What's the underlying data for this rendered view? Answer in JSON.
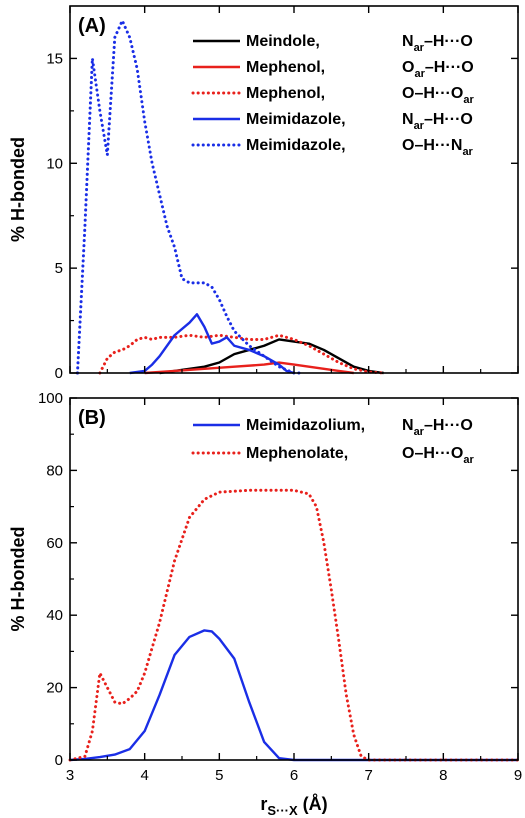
{
  "colors": {
    "black": "#000000",
    "red": "#e8211c",
    "blue": "#1a2ee6"
  },
  "chart_data": [
    {
      "type": "line",
      "panel_label": "(A)",
      "xlabel": "",
      "ylabel": "% H-bonded",
      "xlim": [
        3,
        9
      ],
      "ylim": [
        0,
        17.5
      ],
      "xticks": [
        3,
        4,
        5,
        6,
        7,
        8,
        9
      ],
      "yticks": [
        0,
        5,
        10,
        15
      ],
      "xtick_labels_visible": false,
      "legend_position": "top-right",
      "series": [
        {
          "legend_name": "Meindole,",
          "legend_bond": "N",
          "legend_bond_parts": [
            [
              "N",
              ""
            ],
            [
              "ar",
              "sub"
            ],
            [
              "–H···O",
              ""
            ]
          ],
          "color": "#000000",
          "dash": "solid",
          "x": [
            4.2,
            4.4,
            4.6,
            4.8,
            5.0,
            5.2,
            5.4,
            5.6,
            5.8,
            6.0,
            6.2,
            6.4,
            6.6,
            6.8,
            7.0,
            7.2
          ],
          "y": [
            0.0,
            0.1,
            0.2,
            0.3,
            0.5,
            0.9,
            1.1,
            1.3,
            1.6,
            1.5,
            1.4,
            1.1,
            0.7,
            0.3,
            0.1,
            0.0
          ]
        },
        {
          "legend_name": "Mephenol,",
          "legend_bond_parts": [
            [
              "O",
              ""
            ],
            [
              "ar",
              "sub"
            ],
            [
              "–H···O",
              ""
            ]
          ],
          "color": "#e8211c",
          "dash": "solid",
          "x": [
            4.0,
            4.4,
            4.8,
            5.2,
            5.6,
            5.8,
            6.0,
            6.2,
            6.4,
            6.6,
            6.8
          ],
          "y": [
            0.0,
            0.1,
            0.2,
            0.3,
            0.4,
            0.5,
            0.4,
            0.3,
            0.2,
            0.1,
            0.0
          ]
        },
        {
          "legend_name": "Mephenol,",
          "legend_bond_parts": [
            [
              "O–H···O",
              ""
            ],
            [
              "ar",
              "sub"
            ]
          ],
          "color": "#e8211c",
          "dash": "dotted",
          "x": [
            3.4,
            3.5,
            3.6,
            3.7,
            3.8,
            3.9,
            4.0,
            4.1,
            4.2,
            4.4,
            4.6,
            4.8,
            5.0,
            5.2,
            5.4,
            5.6,
            5.8,
            6.0,
            6.2,
            6.4,
            6.6,
            6.8,
            7.0,
            7.2
          ],
          "y": [
            0.0,
            0.7,
            1.0,
            1.1,
            1.3,
            1.6,
            1.7,
            1.6,
            1.7,
            1.7,
            1.8,
            1.7,
            1.8,
            1.7,
            1.6,
            1.6,
            1.8,
            1.6,
            1.3,
            0.9,
            0.5,
            0.2,
            0.05,
            0.0
          ]
        },
        {
          "legend_name": "Meimidazole,",
          "legend_bond_parts": [
            [
              "N",
              ""
            ],
            [
              "ar",
              "sub"
            ],
            [
              "–H···O",
              ""
            ]
          ],
          "color": "#1a2ee6",
          "dash": "solid",
          "x": [
            3.8,
            4.0,
            4.1,
            4.2,
            4.4,
            4.6,
            4.7,
            4.8,
            4.9,
            5.0,
            5.1,
            5.2,
            5.4,
            5.6,
            5.8,
            5.9,
            6.0
          ],
          "y": [
            0.0,
            0.1,
            0.4,
            0.8,
            1.8,
            2.4,
            2.8,
            2.2,
            1.4,
            1.5,
            1.7,
            1.3,
            1.1,
            0.8,
            0.4,
            0.1,
            0.0
          ]
        },
        {
          "legend_name": "Meimidazole,",
          "legend_bond_parts": [
            [
              "O–H···N",
              ""
            ],
            [
              "ar",
              "sub"
            ]
          ],
          "color": "#1a2ee6",
          "dash": "dotted",
          "x": [
            3.1,
            3.2,
            3.3,
            3.4,
            3.5,
            3.6,
            3.7,
            3.8,
            3.9,
            4.0,
            4.1,
            4.2,
            4.3,
            4.4,
            4.5,
            4.6,
            4.7,
            4.8,
            4.9,
            5.0,
            5.1,
            5.2,
            5.4,
            5.6,
            5.8,
            6.0,
            6.1
          ],
          "y": [
            0.0,
            7.0,
            15.0,
            12.5,
            10.4,
            16.0,
            16.8,
            16.0,
            14.5,
            12.0,
            10.0,
            8.5,
            7.0,
            6.0,
            4.5,
            4.3,
            4.3,
            4.3,
            4.1,
            3.5,
            2.7,
            2.0,
            1.3,
            0.8,
            0.3,
            0.0,
            0.0
          ]
        }
      ]
    },
    {
      "type": "line",
      "panel_label": "(B)",
      "xlabel_main": "r",
      "xlabel_sub": "S···X",
      "xlabel_unit": " (Å)",
      "ylabel": "% H-bonded",
      "xlim": [
        3,
        9
      ],
      "ylim": [
        0,
        100
      ],
      "xticks": [
        3,
        4,
        5,
        6,
        7,
        8,
        9
      ],
      "yticks": [
        0,
        20,
        40,
        60,
        80,
        100
      ],
      "legend_position": "top-right",
      "series": [
        {
          "legend_name": "Meimidazolium,",
          "legend_bond_parts": [
            [
              "N",
              ""
            ],
            [
              "ar",
              "sub"
            ],
            [
              "–H···O",
              ""
            ]
          ],
          "color": "#1a2ee6",
          "dash": "solid",
          "x": [
            3.0,
            3.2,
            3.4,
            3.6,
            3.8,
            4.0,
            4.2,
            4.4,
            4.6,
            4.8,
            4.9,
            5.0,
            5.2,
            5.4,
            5.6,
            5.8,
            6.0,
            6.2,
            9.0
          ],
          "y": [
            0.0,
            0.3,
            0.8,
            1.5,
            3.0,
            8.0,
            18.0,
            29.0,
            34.0,
            35.8,
            35.5,
            33.5,
            28.0,
            16.0,
            5.0,
            0.5,
            0.0,
            0.0,
            0.0
          ]
        },
        {
          "legend_name": "Mephenolate,",
          "legend_bond_parts": [
            [
              "O–H···O",
              ""
            ],
            [
              "ar",
              "sub"
            ]
          ],
          "color": "#e8211c",
          "dash": "dotted",
          "x": [
            3.0,
            3.2,
            3.3,
            3.4,
            3.5,
            3.6,
            3.7,
            3.8,
            3.9,
            4.0,
            4.2,
            4.4,
            4.6,
            4.8,
            5.0,
            5.4,
            5.8,
            6.0,
            6.2,
            6.3,
            6.4,
            6.5,
            6.6,
            6.7,
            6.8,
            6.9,
            7.0,
            9.0
          ],
          "y": [
            0.0,
            1.0,
            8.0,
            24.0,
            20.0,
            16.0,
            15.5,
            17.0,
            19.0,
            24.0,
            38.0,
            55.0,
            67.0,
            72.0,
            74.0,
            74.5,
            74.5,
            74.5,
            73.5,
            70.0,
            60.0,
            47.0,
            33.0,
            18.0,
            7.0,
            1.0,
            0.0,
            0.0
          ]
        }
      ]
    }
  ]
}
